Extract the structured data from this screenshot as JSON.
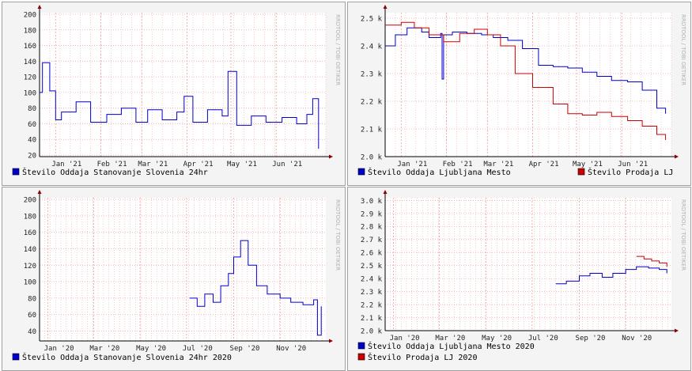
{
  "watermark": "RRDTOOL / TOBI OETIKER",
  "colors": {
    "blue": "#0000cc",
    "red": "#cc0000",
    "grid": "#f0a8a8",
    "frame": "#a0a0a0",
    "bg": "#ffffff",
    "canvas": "#f4f4f4"
  },
  "chart_data": [
    {
      "type": "line",
      "ylim": [
        18,
        202
      ],
      "xlim": [
        "2020-12-21",
        "2021-07-05"
      ],
      "y_ticks": [
        "20",
        "40",
        "60",
        "80",
        "100",
        "120",
        "140",
        "160",
        "180",
        "200"
      ],
      "y_tick_values": [
        20,
        40,
        60,
        80,
        100,
        120,
        140,
        160,
        180,
        200
      ],
      "x_ticks": [
        "Jan '21",
        "Feb '21",
        "Mar '21",
        "Apr '21",
        "May '21",
        "Jun '21"
      ],
      "x_tick_values": [
        "2021-01-01",
        "2021-02-01",
        "2021-03-01",
        "2021-04-01",
        "2021-05-01",
        "2021-06-01"
      ],
      "legend": [
        "Število Oddaja Stanovanje Slovenia 24hr"
      ],
      "series": [
        {
          "name": "Število Oddaja Stanovanje Slovenia 24hr",
          "color": "blue",
          "x": [
            "2020-12-21",
            "2020-12-23",
            "2020-12-28",
            "2021-01-01",
            "2021-01-05",
            "2021-01-15",
            "2021-01-25",
            "2021-02-05",
            "2021-02-15",
            "2021-02-25",
            "2021-03-05",
            "2021-03-15",
            "2021-03-25",
            "2021-03-30",
            "2021-04-05",
            "2021-04-15",
            "2021-04-25",
            "2021-04-29",
            "2021-05-05",
            "2021-05-15",
            "2021-05-25",
            "2021-06-05",
            "2021-06-15",
            "2021-06-22",
            "2021-06-26",
            "2021-06-30"
          ],
          "y": [
            100,
            138,
            102,
            65,
            75,
            88,
            62,
            72,
            80,
            62,
            78,
            65,
            75,
            95,
            62,
            78,
            70,
            127,
            58,
            70,
            62,
            68,
            60,
            72,
            92,
            28
          ]
        }
      ]
    },
    {
      "type": "line",
      "ylim": [
        2000,
        2520
      ],
      "xlim": [
        "2020-12-21",
        "2021-07-05"
      ],
      "y_ticks": [
        "2.0 k",
        "2.1 k",
        "2.2 k",
        "2.3 k",
        "2.4 k",
        "2.5 k"
      ],
      "y_tick_values": [
        2000,
        2100,
        2200,
        2300,
        2400,
        2500
      ],
      "x_ticks": [
        "Jan '21",
        "Feb '21",
        "Mar '21",
        "Apr '21",
        "May '21",
        "Jun '21"
      ],
      "x_tick_values": [
        "2021-01-01",
        "2021-02-01",
        "2021-03-01",
        "2021-04-01",
        "2021-05-01",
        "2021-06-01"
      ],
      "legend": [
        "Število Oddaja Ljubljana Mesto",
        "Število Prodaja LJ"
      ],
      "series": [
        {
          "name": "Število Oddaja Ljubljana Mesto",
          "color": "blue",
          "x": [
            "2020-12-21",
            "2020-12-28",
            "2021-01-05",
            "2021-01-15",
            "2021-01-20",
            "2021-01-28",
            "2021-01-29",
            "2021-01-30",
            "2021-02-05",
            "2021-02-15",
            "2021-02-25",
            "2021-03-05",
            "2021-03-15",
            "2021-03-25",
            "2021-04-05",
            "2021-04-15",
            "2021-04-25",
            "2021-05-05",
            "2021-05-15",
            "2021-05-25",
            "2021-06-05",
            "2021-06-15",
            "2021-06-25",
            "2021-07-01"
          ],
          "y": [
            2400,
            2440,
            2465,
            2450,
            2430,
            2445,
            2280,
            2440,
            2450,
            2445,
            2440,
            2430,
            2420,
            2390,
            2330,
            2325,
            2320,
            2305,
            2290,
            2275,
            2270,
            2240,
            2175,
            2155
          ]
        },
        {
          "name": "Število Prodaja LJ",
          "color": "red",
          "x": [
            "2020-12-21",
            "2021-01-01",
            "2021-01-10",
            "2021-01-20",
            "2021-01-30",
            "2021-02-10",
            "2021-02-20",
            "2021-03-01",
            "2021-03-10",
            "2021-03-20",
            "2021-04-01",
            "2021-04-15",
            "2021-04-25",
            "2021-05-05",
            "2021-05-15",
            "2021-05-25",
            "2021-06-05",
            "2021-06-15",
            "2021-06-25",
            "2021-07-01"
          ],
          "y": [
            2475,
            2485,
            2465,
            2440,
            2415,
            2445,
            2460,
            2440,
            2400,
            2300,
            2250,
            2190,
            2155,
            2150,
            2160,
            2145,
            2130,
            2110,
            2080,
            2060
          ]
        }
      ]
    },
    {
      "type": "line",
      "ylim": [
        28,
        202
      ],
      "xlim": [
        "2019-12-21",
        "2020-12-31"
      ],
      "y_ticks": [
        "40",
        "60",
        "80",
        "100",
        "120",
        "140",
        "160",
        "180",
        "200"
      ],
      "y_tick_values": [
        40,
        60,
        80,
        100,
        120,
        140,
        160,
        180,
        200
      ],
      "x_ticks": [
        "Jan '20",
        "Mar '20",
        "May '20",
        "Jul '20",
        "Sep '20",
        "Nov '20"
      ],
      "x_tick_values": [
        "2020-01-01",
        "2020-03-01",
        "2020-05-01",
        "2020-07-01",
        "2020-09-01",
        "2020-11-01"
      ],
      "legend": [
        "Število Oddaja Stanovanje Slovenia 24hr 2020"
      ],
      "series": [
        {
          "name": "Število Oddaja Stanovanje Slovenia 24hr 2020",
          "color": "blue",
          "x": [
            "2020-07-05",
            "2020-07-15",
            "2020-07-25",
            "2020-08-05",
            "2020-08-15",
            "2020-08-25",
            "2020-09-01",
            "2020-09-10",
            "2020-09-20",
            "2020-10-01",
            "2020-10-15",
            "2020-11-01",
            "2020-11-15",
            "2020-12-01",
            "2020-12-15",
            "2020-12-20",
            "2020-12-25"
          ],
          "y": [
            80,
            70,
            85,
            75,
            95,
            110,
            130,
            150,
            120,
            95,
            85,
            80,
            75,
            72,
            78,
            35,
            70
          ]
        }
      ]
    },
    {
      "type": "line",
      "ylim": [
        2000,
        3020
      ],
      "xlim": [
        "2019-12-21",
        "2020-12-31"
      ],
      "y_ticks": [
        "2.0 k",
        "2.1 k",
        "2.2 k",
        "2.3 k",
        "2.4 k",
        "2.5 k",
        "2.6 k",
        "2.7 k",
        "2.8 k",
        "2.9 k",
        "3.0 k"
      ],
      "y_tick_values": [
        2000,
        2100,
        2200,
        2300,
        2400,
        2500,
        2600,
        2700,
        2800,
        2900,
        3000
      ],
      "x_ticks": [
        "Jan '20",
        "Mar '20",
        "May '20",
        "Jul '20",
        "Sep '20",
        "Nov '20"
      ],
      "x_tick_values": [
        "2020-01-01",
        "2020-03-01",
        "2020-05-01",
        "2020-07-01",
        "2020-09-01",
        "2020-11-01"
      ],
      "legend": [
        "Število Oddaja Ljubljana Mesto 2020",
        "Število Prodaja LJ 2020"
      ],
      "series": [
        {
          "name": "Število Oddaja Ljubljana Mesto 2020",
          "color": "blue",
          "x": [
            "2020-08-01",
            "2020-08-15",
            "2020-09-01",
            "2020-09-15",
            "2020-10-01",
            "2020-10-15",
            "2020-11-01",
            "2020-11-15",
            "2020-12-01",
            "2020-12-15",
            "2020-12-25"
          ],
          "y": [
            2360,
            2380,
            2420,
            2440,
            2410,
            2440,
            2470,
            2490,
            2480,
            2470,
            2440
          ]
        },
        {
          "name": "Število Prodaja LJ 2020",
          "color": "red",
          "x": [
            "2020-11-15",
            "2020-11-25",
            "2020-12-05",
            "2020-12-15",
            "2020-12-25"
          ],
          "y": [
            2570,
            2550,
            2535,
            2520,
            2490
          ]
        }
      ]
    }
  ]
}
